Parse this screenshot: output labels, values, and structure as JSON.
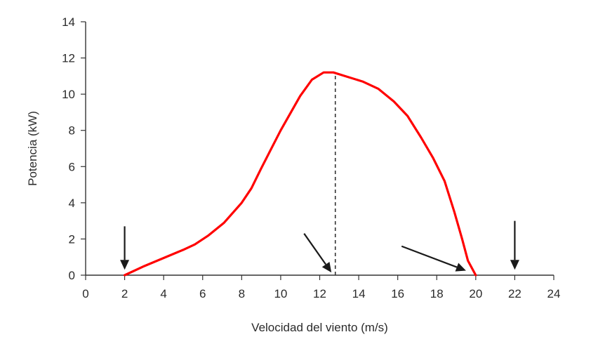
{
  "chart_data": {
    "type": "line",
    "title": "",
    "xlabel": "Velocidad del viento (m/s)",
    "ylabel": "Potencia (kW)",
    "xlim": [
      0,
      24
    ],
    "ylim": [
      0,
      14
    ],
    "x_ticks": [
      0,
      2,
      4,
      6,
      8,
      10,
      12,
      14,
      16,
      18,
      20,
      22,
      24
    ],
    "y_ticks": [
      0,
      2,
      4,
      6,
      8,
      10,
      12,
      14
    ],
    "grid": false,
    "series": [
      {
        "color": "#ff0000",
        "x": [
          2,
          3,
          4,
          5,
          5.6,
          6.3,
          7.1,
          8,
          8.5,
          9,
          10,
          11,
          11.6,
          12.2,
          12.7,
          13.3,
          14.2,
          15,
          15.8,
          16.5,
          17.2,
          17.8,
          18.4,
          18.9,
          19.3,
          19.6,
          20
        ],
        "y": [
          0,
          0.5,
          0.95,
          1.4,
          1.7,
          2.2,
          2.9,
          4.0,
          4.8,
          5.9,
          8.0,
          9.9,
          10.8,
          11.2,
          11.2,
          11.0,
          10.7,
          10.3,
          9.6,
          8.8,
          7.6,
          6.5,
          5.2,
          3.5,
          2.0,
          0.8,
          0
        ]
      }
    ],
    "reference_lines": [
      {
        "type": "vertical-dashed",
        "x": 12.8,
        "y_from": 0,
        "y_to": 11.2,
        "color": "#333333"
      }
    ],
    "arrows": [
      {
        "from": [
          2,
          2.7
        ],
        "to": [
          2,
          0.3
        ],
        "color": "#1a1a1a"
      },
      {
        "from": [
          11.2,
          2.3
        ],
        "to": [
          12.6,
          0.15
        ],
        "color": "#1a1a1a"
      },
      {
        "from": [
          16.2,
          1.6
        ],
        "to": [
          19.5,
          0.25
        ],
        "color": "#1a1a1a"
      },
      {
        "from": [
          22,
          3.0
        ],
        "to": [
          22,
          0.3
        ],
        "color": "#1a1a1a"
      }
    ],
    "colors": {
      "axis": "#333333",
      "text": "#2b2b2b",
      "curve": "#ff0000"
    }
  }
}
